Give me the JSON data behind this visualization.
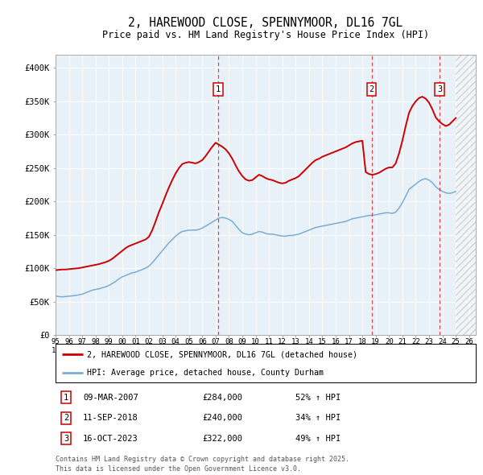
{
  "title": "2, HAREWOOD CLOSE, SPENNYMOOR, DL16 7GL",
  "subtitle": "Price paid vs. HM Land Registry's House Price Index (HPI)",
  "legend_line1": "2, HAREWOOD CLOSE, SPENNYMOOR, DL16 7GL (detached house)",
  "legend_line2": "HPI: Average price, detached house, County Durham",
  "ylabel_ticks": [
    "£0",
    "£50K",
    "£100K",
    "£150K",
    "£200K",
    "£250K",
    "£300K",
    "£350K",
    "£400K"
  ],
  "ytick_values": [
    0,
    50000,
    100000,
    150000,
    200000,
    250000,
    300000,
    350000,
    400000
  ],
  "ylim": [
    0,
    420000
  ],
  "xlim_start": 1995.0,
  "xlim_end": 2026.5,
  "transactions": [
    {
      "num": 1,
      "date_x": 2007.19,
      "price": 284000,
      "label": "09-MAR-2007",
      "price_label": "£284,000",
      "hpi_label": "52% ↑ HPI"
    },
    {
      "num": 2,
      "date_x": 2018.7,
      "price": 240000,
      "label": "11-SEP-2018",
      "price_label": "£240,000",
      "hpi_label": "34% ↑ HPI"
    },
    {
      "num": 3,
      "date_x": 2023.79,
      "price": 322000,
      "label": "16-OCT-2023",
      "price_label": "£322,000",
      "hpi_label": "49% ↑ HPI"
    }
  ],
  "footer_line1": "Contains HM Land Registry data © Crown copyright and database right 2025.",
  "footer_line2": "This data is licensed under the Open Government Licence v3.0.",
  "red_line_color": "#cc0000",
  "blue_line_color": "#7aadd4",
  "plot_bg_color": "#e8f0f8",
  "hpi_data_x": [
    1995.0,
    1995.25,
    1995.5,
    1995.75,
    1996.0,
    1996.25,
    1996.5,
    1996.75,
    1997.0,
    1997.25,
    1997.5,
    1997.75,
    1998.0,
    1998.25,
    1998.5,
    1998.75,
    1999.0,
    1999.25,
    1999.5,
    1999.75,
    2000.0,
    2000.25,
    2000.5,
    2000.75,
    2001.0,
    2001.25,
    2001.5,
    2001.75,
    2002.0,
    2002.25,
    2002.5,
    2002.75,
    2003.0,
    2003.25,
    2003.5,
    2003.75,
    2004.0,
    2004.25,
    2004.5,
    2004.75,
    2005.0,
    2005.25,
    2005.5,
    2005.75,
    2006.0,
    2006.25,
    2006.5,
    2006.75,
    2007.0,
    2007.25,
    2007.5,
    2007.75,
    2008.0,
    2008.25,
    2008.5,
    2008.75,
    2009.0,
    2009.25,
    2009.5,
    2009.75,
    2010.0,
    2010.25,
    2010.5,
    2010.75,
    2011.0,
    2011.25,
    2011.5,
    2011.75,
    2012.0,
    2012.25,
    2012.5,
    2012.75,
    2013.0,
    2013.25,
    2013.5,
    2013.75,
    2014.0,
    2014.25,
    2014.5,
    2014.75,
    2015.0,
    2015.25,
    2015.5,
    2015.75,
    2016.0,
    2016.25,
    2016.5,
    2016.75,
    2017.0,
    2017.25,
    2017.5,
    2017.75,
    2018.0,
    2018.25,
    2018.5,
    2018.75,
    2019.0,
    2019.25,
    2019.5,
    2019.75,
    2020.0,
    2020.25,
    2020.5,
    2020.75,
    2021.0,
    2021.25,
    2021.5,
    2021.75,
    2022.0,
    2022.25,
    2022.5,
    2022.75,
    2023.0,
    2023.25,
    2023.5,
    2023.75,
    2024.0,
    2024.25,
    2024.5,
    2024.75,
    2025.0
  ],
  "hpi_data_y": [
    58000,
    57500,
    57000,
    57500,
    58000,
    58500,
    59000,
    60000,
    61000,
    63000,
    65000,
    67000,
    68000,
    69000,
    70500,
    72000,
    74000,
    77000,
    80000,
    84000,
    87000,
    89000,
    91000,
    93000,
    94000,
    96000,
    98000,
    100000,
    103000,
    108000,
    114000,
    120000,
    126000,
    132000,
    138000,
    143000,
    148000,
    152000,
    155000,
    156000,
    157000,
    157000,
    157000,
    158000,
    160000,
    163000,
    166000,
    169000,
    172000,
    175000,
    176000,
    175000,
    173000,
    170000,
    164000,
    158000,
    153000,
    151000,
    150000,
    151000,
    153000,
    155000,
    154000,
    152000,
    151000,
    151000,
    150000,
    149000,
    148000,
    148000,
    149000,
    149000,
    150000,
    151000,
    153000,
    155000,
    157000,
    159000,
    161000,
    162000,
    163000,
    164000,
    165000,
    166000,
    167000,
    168000,
    169000,
    170000,
    172000,
    174000,
    175000,
    176000,
    177000,
    178000,
    179000,
    179000,
    180000,
    181000,
    182000,
    183000,
    183000,
    182000,
    184000,
    190000,
    198000,
    208000,
    218000,
    222000,
    226000,
    230000,
    233000,
    234000,
    232000,
    228000,
    222000,
    218000,
    215000,
    213000,
    212000,
    213000,
    215000
  ],
  "price_data_x": [
    1995.0,
    1995.25,
    1995.5,
    1995.75,
    1996.0,
    1996.25,
    1996.5,
    1996.75,
    1997.0,
    1997.25,
    1997.5,
    1997.75,
    1998.0,
    1998.25,
    1998.5,
    1998.75,
    1999.0,
    1999.25,
    1999.5,
    1999.75,
    2000.0,
    2000.25,
    2000.5,
    2000.75,
    2001.0,
    2001.25,
    2001.5,
    2001.75,
    2002.0,
    2002.25,
    2002.5,
    2002.75,
    2003.0,
    2003.25,
    2003.5,
    2003.75,
    2004.0,
    2004.25,
    2004.5,
    2004.75,
    2005.0,
    2005.25,
    2005.5,
    2005.75,
    2006.0,
    2006.25,
    2006.5,
    2006.75,
    2007.0,
    2007.25,
    2007.5,
    2007.75,
    2008.0,
    2008.25,
    2008.5,
    2008.75,
    2009.0,
    2009.25,
    2009.5,
    2009.75,
    2010.0,
    2010.25,
    2010.5,
    2010.75,
    2011.0,
    2011.25,
    2011.5,
    2011.75,
    2012.0,
    2012.25,
    2012.5,
    2012.75,
    2013.0,
    2013.25,
    2013.5,
    2013.75,
    2014.0,
    2014.25,
    2014.5,
    2014.75,
    2015.0,
    2015.25,
    2015.5,
    2015.75,
    2016.0,
    2016.25,
    2016.5,
    2016.75,
    2017.0,
    2017.25,
    2017.5,
    2017.75,
    2018.0,
    2018.25,
    2018.5,
    2018.75,
    2019.0,
    2019.25,
    2019.5,
    2019.75,
    2020.0,
    2020.25,
    2020.5,
    2020.75,
    2021.0,
    2021.25,
    2021.5,
    2021.75,
    2022.0,
    2022.25,
    2022.5,
    2022.75,
    2023.0,
    2023.25,
    2023.5,
    2023.75,
    2024.0,
    2024.25,
    2024.5,
    2024.75,
    2025.0
  ],
  "price_data_y": [
    97000,
    97500,
    98000,
    98000,
    98500,
    99000,
    99500,
    100000,
    101000,
    102000,
    103000,
    104000,
    105000,
    106000,
    107500,
    109000,
    111000,
    114000,
    118000,
    122000,
    126000,
    130000,
    133000,
    135000,
    137000,
    139000,
    141000,
    143000,
    147000,
    157000,
    170000,
    184000,
    196000,
    209000,
    221000,
    232000,
    242000,
    250000,
    256000,
    258000,
    259000,
    258000,
    257000,
    259000,
    262000,
    268000,
    275000,
    282000,
    288000,
    285000,
    282000,
    278000,
    272000,
    264000,
    254000,
    245000,
    238000,
    233000,
    231000,
    232000,
    236000,
    240000,
    238000,
    235000,
    233000,
    232000,
    230000,
    228000,
    227000,
    228000,
    231000,
    233000,
    235000,
    238000,
    243000,
    248000,
    253000,
    258000,
    262000,
    264000,
    267000,
    269000,
    271000,
    273000,
    275000,
    277000,
    279000,
    281000,
    284000,
    287000,
    289000,
    290000,
    291000,
    244000,
    241000,
    240000,
    241000,
    243000,
    246000,
    249000,
    251000,
    251000,
    257000,
    272000,
    291000,
    313000,
    333000,
    343000,
    350000,
    355000,
    357000,
    354000,
    348000,
    338000,
    326000,
    320000,
    316000,
    313000,
    315000,
    320000,
    325000
  ]
}
